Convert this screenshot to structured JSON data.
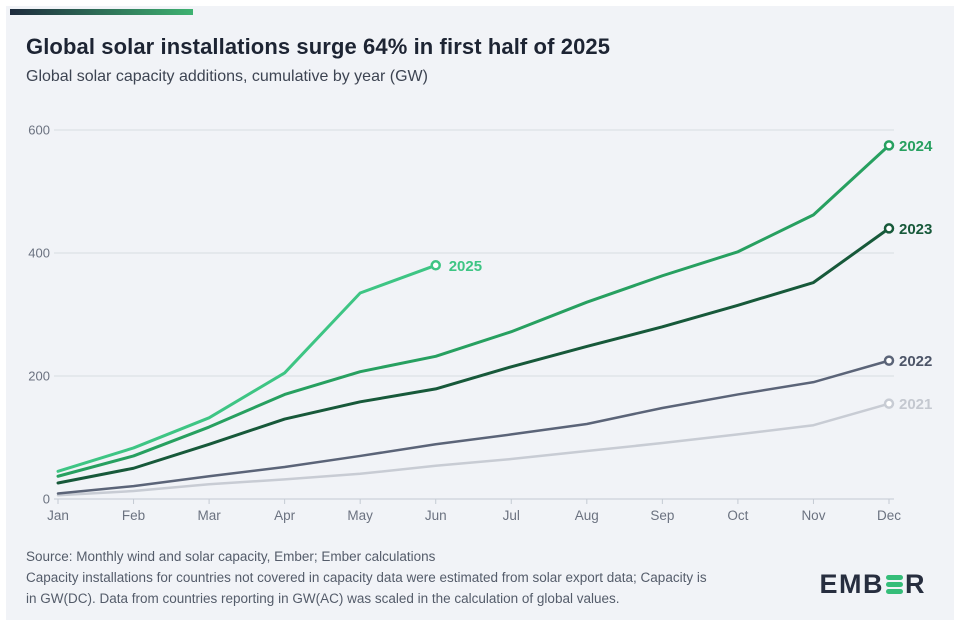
{
  "page": {
    "background": "#ffffff",
    "card_background": "#f1f3f7"
  },
  "accent_bar": {
    "color_from": "#1e2b3d",
    "color_to": "#3eb271"
  },
  "header": {
    "title": "Global solar installations surge 64% in first half of 2025",
    "subtitle": "Global solar capacity additions, cumulative by year (GW)"
  },
  "footer": {
    "line1": "Source: Monthly wind and solar capacity, Ember; Ember calculations",
    "line2": "Capacity installations for countries not covered in capacity data were estimated from solar export data; Capacity is",
    "line3": "in GW(DC). Data from countries reporting in GW(AC) was scaled in the calculation of global values."
  },
  "logo": {
    "text_left": "EMB",
    "text_right": "R",
    "navy": "#272e3f",
    "green": "#35bd79"
  },
  "chart_data": {
    "type": "line",
    "title": "Global solar installations surge 64% in first half of 2025",
    "subtitle": "Global solar capacity additions, cumulative by year (GW)",
    "unit": "GW",
    "x_labels": [
      "Jan",
      "Feb",
      "Mar",
      "Apr",
      "May",
      "Jun",
      "Jul",
      "Aug",
      "Sep",
      "Oct",
      "Nov",
      "Dec"
    ],
    "y_ticks": [
      0,
      200,
      400,
      600
    ],
    "ylim": [
      0,
      620
    ],
    "grid": "horizontal",
    "legend_position": "line-end-labels",
    "axis_text_color": "#6b7280",
    "grid_color": "#d8dce2",
    "axis_line_color": "#c4cad3",
    "series": [
      {
        "name": "2021",
        "color": "#c8ccd4",
        "label_color": "#c4c8d0",
        "stroke_width": 2.5,
        "values": [
          6,
          13,
          24,
          32,
          41,
          54,
          65,
          78,
          91,
          105,
          120,
          155
        ]
      },
      {
        "name": "2022",
        "color": "#5b6478",
        "label_color": "#4d5568",
        "stroke_width": 2.5,
        "values": [
          9,
          21,
          37,
          52,
          70,
          89,
          105,
          122,
          148,
          170,
          190,
          225
        ]
      },
      {
        "name": "2023",
        "color": "#17593a",
        "label_color": "#17593a",
        "stroke_width": 3,
        "values": [
          26,
          50,
          89,
          130,
          158,
          179,
          215,
          248,
          280,
          315,
          352,
          440
        ]
      },
      {
        "name": "2024",
        "color": "#27a060",
        "label_color": "#27a060",
        "stroke_width": 3,
        "values": [
          37,
          70,
          117,
          170,
          207,
          232,
          272,
          320,
          363,
          402,
          462,
          575
        ]
      },
      {
        "name": "2025",
        "color": "#3ec584",
        "label_color": "#3ec584",
        "stroke_width": 3,
        "values": [
          45,
          83,
          132,
          205,
          335,
          380
        ]
      }
    ]
  }
}
